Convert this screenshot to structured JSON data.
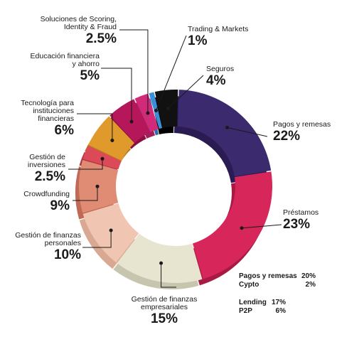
{
  "chart_data": {
    "type": "pie",
    "donut": true,
    "slices": [
      {
        "label": "Pagos y remesas",
        "pct_label": "22%",
        "value": 22,
        "color": "#3b2a6e",
        "side": "#2a1c52"
      },
      {
        "label": "Préstamos",
        "pct_label": "23%",
        "value": 23,
        "color": "#d7265a",
        "side": "#a81a44"
      },
      {
        "label": "Gestión de finanzas empresariales",
        "pct_label": "15%",
        "value": 15,
        "color": "#e7e4cf",
        "side": "#c8c5ae"
      },
      {
        "label": "Gestión de finanzas personales",
        "pct_label": "10%",
        "value": 10,
        "color": "#f0c6b2",
        "side": "#d9a892"
      },
      {
        "label": "Crowdfunding",
        "pct_label": "9%",
        "value": 9,
        "color": "#e08b74",
        "side": "#bf6a56"
      },
      {
        "label": "Gestión de inversiones",
        "pct_label": "2.5%",
        "value": 2.5,
        "color": "#dc4a5a",
        "side": "#b13442"
      },
      {
        "label": "Tecnología para instituciones financieras",
        "pct_label": "6%",
        "value": 6,
        "color": "#e09a2c",
        "side": "#b97a1c"
      },
      {
        "label": "Educación financiera y ahorro",
        "pct_label": "5%",
        "value": 5,
        "color": "#b5175a",
        "side": "#8c0f44"
      },
      {
        "label": "Soluciones de Scoring, Identity & Fraud",
        "pct_label": "2.5%",
        "value": 2.5,
        "color": "#d12a78",
        "side": "#a31e5d"
      },
      {
        "label": "Trading & Markets",
        "pct_label": "1%",
        "value": 1,
        "color": "#3a8fd6",
        "side": "#2a6ea8"
      },
      {
        "label": "Seguros",
        "pct_label": "4%",
        "value": 4,
        "color": "#111111",
        "side": "#000000"
      }
    ],
    "breakdowns": [
      {
        "items": [
          {
            "name": "Pagos y remesas",
            "pct": "20%"
          },
          {
            "name": "Cypto",
            "pct": "2%"
          }
        ]
      },
      {
        "items": [
          {
            "name": "Lending",
            "pct": "17%"
          },
          {
            "name": "P2P",
            "pct": "6%"
          }
        ]
      }
    ]
  },
  "labels": {
    "scoring": {
      "name_1": "Soluciones de Scoring,",
      "name_2": "Identity & Fraud",
      "pct": "2.5%"
    },
    "trading": {
      "name": "Trading & Markets",
      "pct": "1%"
    },
    "educacion": {
      "name_1": "Educación financiera",
      "name_2": "y ahorro",
      "pct": "5%"
    },
    "seguros": {
      "name": "Seguros",
      "pct": "4%"
    },
    "tecnologia": {
      "name_1": "Tecnología para",
      "name_2": "instituciones financieras",
      "pct": "6%"
    },
    "pagos": {
      "name": "Pagos y remesas",
      "pct": "22%"
    },
    "inversiones": {
      "name_1": "Gestión de",
      "name_2": "inversiones",
      "pct": "2.5%"
    },
    "crowdfunding": {
      "name": "Crowdfunding",
      "pct": "9%"
    },
    "prestamos": {
      "name": "Préstamos",
      "pct": "23%"
    },
    "personales": {
      "name_1": "Gestión de finanzas",
      "name_2": "personales",
      "pct": "10%"
    },
    "empresariales": {
      "name_1": "Gestión de finanzas",
      "name_2": "empresariales",
      "pct": "15%"
    }
  }
}
